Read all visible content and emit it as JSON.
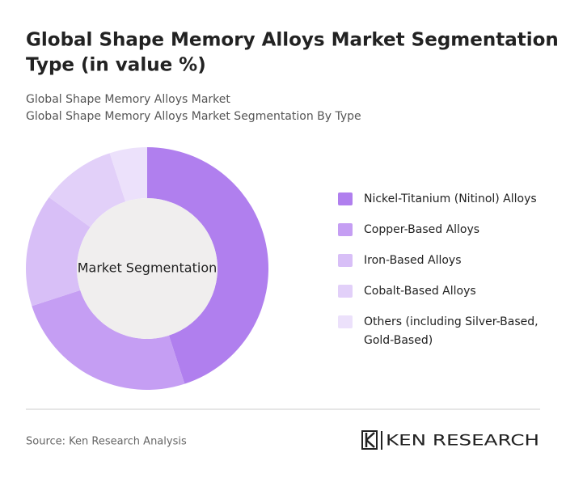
{
  "chart_data": {
    "type": "donut",
    "title_lines": [
      "Global Shape Memory Alloys Market Segmentation By",
      "Type (in value %)"
    ],
    "subtitle_lines": [
      "Global Shape Memory Alloys Market",
      "Global Shape Memory Alloys Market Segmentation By Type"
    ],
    "center_label": "Market Segmentation",
    "categories": [
      [
        "Nickel-Titanium (Nitinol) Alloys"
      ],
      [
        "Copper-Based Alloys"
      ],
      [
        "Iron-Based Alloys"
      ],
      [
        "Cobalt-Based Alloys"
      ],
      [
        "Others (including Silver-Based,",
        "Gold-Based)"
      ]
    ],
    "values": [
      45,
      25,
      15,
      10,
      5
    ],
    "colors": [
      "#b07fee",
      "#c59ef3",
      "#d8bff7",
      "#e2d0f9",
      "#ece1fb"
    ],
    "source": "Source: Ken Research Analysis",
    "brand": "KEN RESEARCH"
  }
}
